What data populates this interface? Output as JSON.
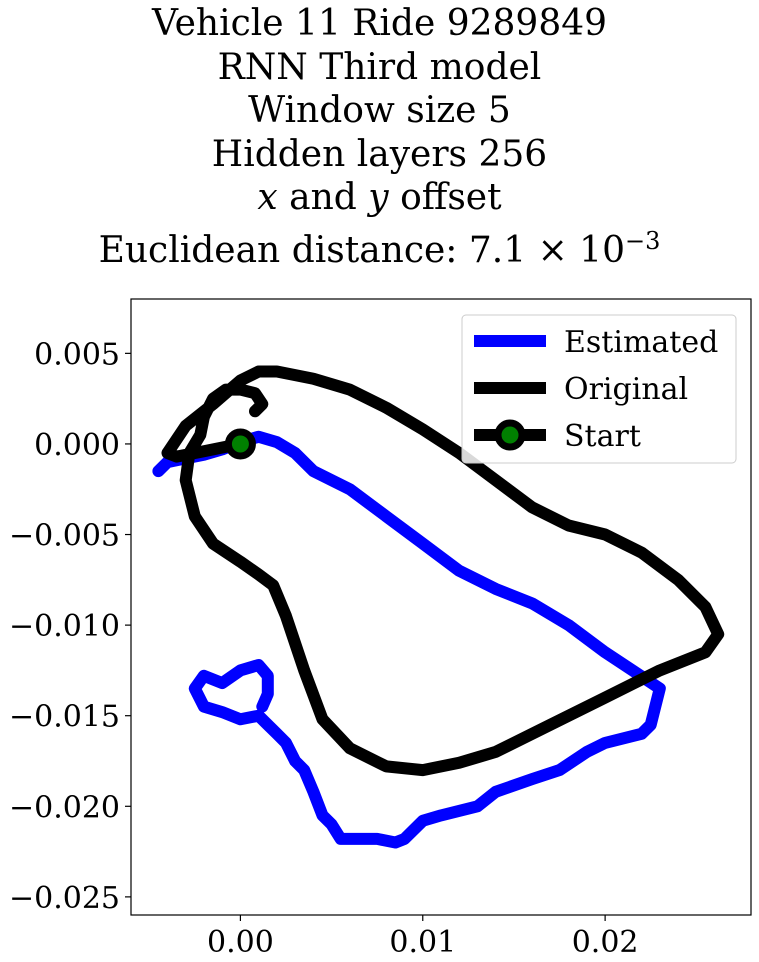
{
  "title": {
    "line1": "Vehicle 11 Ride 9289849",
    "line2": "RNN Third model",
    "line3": "Window size 5",
    "line4": "Hidden layers 256",
    "line5_x": "x",
    "line5_and": " and ",
    "line5_y": "y",
    "line5_rest": " offset",
    "line6_prefix": "Euclidean distance: 7.1 × 10",
    "line6_exp": "−3"
  },
  "chart_data": {
    "type": "line",
    "xlim": [
      -0.006,
      0.028
    ],
    "ylim": [
      -0.026,
      0.008
    ],
    "x_ticks": [
      0.0,
      0.01,
      0.02
    ],
    "x_tick_labels": [
      "0.00",
      "0.01",
      "0.02"
    ],
    "y_ticks": [
      0.005,
      0.0,
      -0.005,
      -0.01,
      -0.015,
      -0.02,
      -0.025
    ],
    "y_tick_labels": [
      "0.005",
      "0.000",
      "−0.005",
      "−0.010",
      "−0.015",
      "−0.020",
      "−0.025"
    ],
    "grid": false,
    "legend_position": "top-right",
    "series": [
      {
        "name": "Estimated",
        "color": "#0000ff",
        "x": [
          -0.0045,
          -0.004,
          -0.003,
          -0.002,
          -0.001,
          0.0,
          0.001,
          0.002,
          0.003,
          0.004,
          0.006,
          0.008,
          0.01,
          0.012,
          0.014,
          0.016,
          0.018,
          0.02,
          0.0215,
          0.023,
          0.0225,
          0.022,
          0.02,
          0.019,
          0.0175,
          0.016,
          0.014,
          0.013,
          0.011,
          0.01,
          0.009,
          0.0085,
          0.0075,
          0.0065,
          0.0055,
          0.005,
          0.0045,
          0.004,
          0.0035,
          0.003,
          0.0025,
          0.002,
          0.0015,
          0.001,
          0.0,
          -0.001,
          -0.002,
          -0.0025,
          -0.002,
          -0.001,
          0.0,
          0.001,
          0.0015,
          0.0015,
          0.0012
        ],
        "y": [
          -0.0015,
          -0.001,
          -0.0008,
          -0.0006,
          -0.0003,
          0.0001,
          0.0004,
          0.0001,
          -0.0005,
          -0.0015,
          -0.0025,
          -0.004,
          -0.0055,
          -0.007,
          -0.008,
          -0.0088,
          -0.01,
          -0.0115,
          -0.0125,
          -0.0135,
          -0.0155,
          -0.016,
          -0.0165,
          -0.017,
          -0.018,
          -0.0185,
          -0.0192,
          -0.02,
          -0.0205,
          -0.0208,
          -0.0218,
          -0.022,
          -0.0218,
          -0.0218,
          -0.0218,
          -0.021,
          -0.0205,
          -0.0192,
          -0.018,
          -0.0175,
          -0.0165,
          -0.016,
          -0.0155,
          -0.015,
          -0.0152,
          -0.0148,
          -0.0145,
          -0.0135,
          -0.0128,
          -0.0132,
          -0.0125,
          -0.0122,
          -0.0128,
          -0.0138,
          -0.0145
        ]
      },
      {
        "name": "Original",
        "color": "#000000",
        "x": [
          0.0,
          -0.002,
          -0.0035,
          -0.004,
          -0.003,
          -0.0015,
          0.0,
          0.001,
          0.002,
          0.004,
          0.006,
          0.008,
          0.01,
          0.012,
          0.014,
          0.016,
          0.018,
          0.02,
          0.022,
          0.024,
          0.0255,
          0.0262,
          0.0255,
          0.023,
          0.02,
          0.017,
          0.014,
          0.012,
          0.01,
          0.008,
          0.006,
          0.0045,
          0.0035,
          0.0025,
          0.0018,
          0.001,
          0.0,
          -0.0015,
          -0.0025,
          -0.003,
          -0.0028,
          -0.0022,
          -0.002,
          -0.0015,
          -0.0008,
          0.0,
          0.0008,
          0.0012,
          0.0008
        ],
        "y": [
          0.0,
          -0.0004,
          -0.0007,
          -0.0005,
          0.001,
          0.0022,
          0.0035,
          0.004,
          0.004,
          0.0036,
          0.003,
          0.002,
          0.0008,
          -0.0005,
          -0.002,
          -0.0035,
          -0.0045,
          -0.005,
          -0.006,
          -0.0075,
          -0.009,
          -0.0105,
          -0.0115,
          -0.0125,
          -0.014,
          -0.0155,
          -0.017,
          -0.0176,
          -0.018,
          -0.0178,
          -0.0168,
          -0.0152,
          -0.0125,
          -0.0095,
          -0.0078,
          -0.0072,
          -0.0065,
          -0.0055,
          -0.004,
          -0.002,
          -0.0005,
          0.0005,
          0.0015,
          0.0025,
          0.003,
          0.003,
          0.0028,
          0.0022,
          0.0018
        ]
      },
      {
        "name": "Start",
        "color": "#000000",
        "marker_face": "#008000",
        "x": [
          0.0
        ],
        "y": [
          0.0
        ]
      }
    ]
  }
}
